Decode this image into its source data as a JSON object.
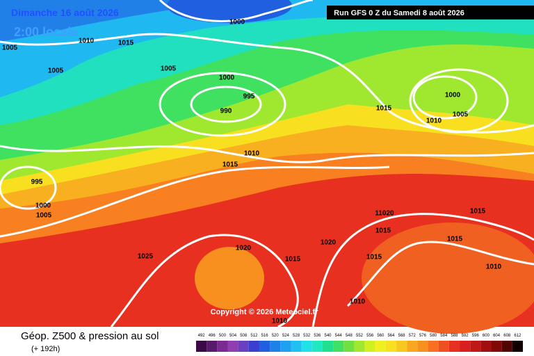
{
  "header": {
    "date": "Dimanche 16 août 2026",
    "time": "2:00 locale",
    "run": "Run GFS 0 Z du Samedi 8 août 2026"
  },
  "isobar_labels": [
    1000,
    1010,
    1015,
    1005,
    1005,
    1005,
    1000,
    995,
    990,
    1010,
    1015,
    1000,
    1005,
    1015,
    1010,
    995,
    1000,
    1005,
    1025,
    1020,
    1015,
    1020,
    1015,
    11020,
    1015,
    1015,
    1015,
    1010,
    1010,
    1010
  ],
  "copyright": "Copyright © 2026 Meteociel.fr",
  "footer": {
    "title": "Géop. Z500 & pression au sol",
    "subtitle": "(+ 192h)"
  },
  "scale": {
    "values": [
      492,
      496,
      500,
      504,
      508,
      512,
      516,
      520,
      524,
      528,
      532,
      536,
      540,
      544,
      548,
      552,
      556,
      560,
      564,
      568,
      572,
      576,
      580,
      584,
      588,
      592,
      596,
      600,
      604,
      608,
      612
    ],
    "colors": [
      "#3b0a45",
      "#5a1a6b",
      "#7a2a91",
      "#8f3fb0",
      "#6a3fc0",
      "#3a3fd0",
      "#1f5fe0",
      "#1f80e8",
      "#20a0f0",
      "#20c0f0",
      "#20e0e8",
      "#20e8c0",
      "#20e090",
      "#40e060",
      "#70e040",
      "#a0e830",
      "#d0f020",
      "#f0f020",
      "#f8e020",
      "#f8c820",
      "#f8a820",
      "#f89020",
      "#f87020",
      "#f05020",
      "#e83020",
      "#d82020",
      "#c01818",
      "#a01010",
      "#800808",
      "#500404",
      "#100000"
    ]
  }
}
